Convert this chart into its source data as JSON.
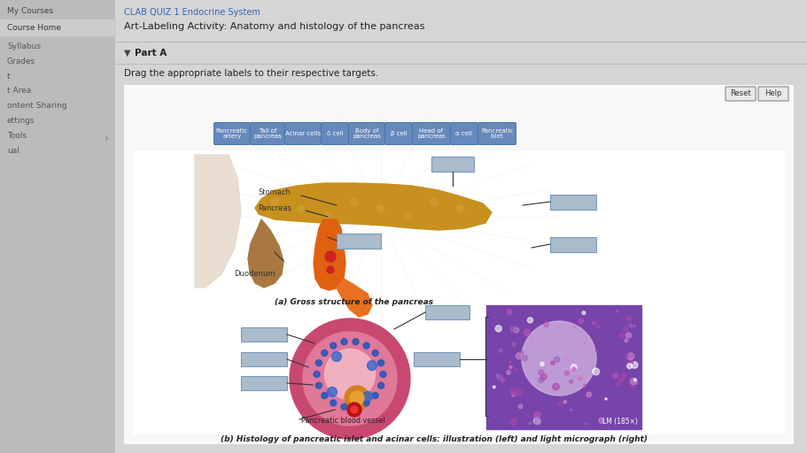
{
  "bg_color": "#b0b0b0",
  "sidebar_bg": "#b8b8b8",
  "sidebar_highlight": "#c0c0c0",
  "header_bg": "#d8d8d8",
  "title_line1": "CLAB QUIZ 1 Endocrine System",
  "title_line2": "Art-Labeling Activity: Anatomy and histology of the pancreas",
  "sidebar_items": [
    "My Courses",
    "Course Home",
    "Syllabus",
    "Grades",
    "t",
    "t Area",
    "ontent Sharing",
    "ettings",
    "Tools",
    "ual"
  ],
  "part_a_label": "Part A",
  "drag_instruction": "Drag the appropriate labels to their respective targets.",
  "label_buttons": [
    "Pancreatic\nartery",
    "Tail of\npancreas",
    "Acinar cells",
    "δ cell",
    "Body of\npancreas",
    "β cell",
    "Head of\npancreas",
    "α cell",
    "Pancreatic\nislet"
  ],
  "button_color": "#6688bb",
  "button_text_color": "#ffffff",
  "box_fill": "#aabbcc",
  "box_edge": "#8899aa",
  "content_bg": "#e8e8e8",
  "inner_bg": "#f5f5f5",
  "panel_bg": "#ffffff",
  "caption_a": "(a) Gross structure of the pancreas",
  "caption_b": "(b) Histology of pancreatic islet and acinar cells: illustration (left) and light micrograph (right)",
  "lm_label": "LM (185×)",
  "pancreatic_blood_vessel": "Pancreatic blood vessel",
  "stomach_label": "Stomach",
  "pancreas_label": "Pancreas",
  "duodenum_label": "Duodenum",
  "sidebar_text_color": "#555555",
  "sidebar_highlight_text": "#333333"
}
